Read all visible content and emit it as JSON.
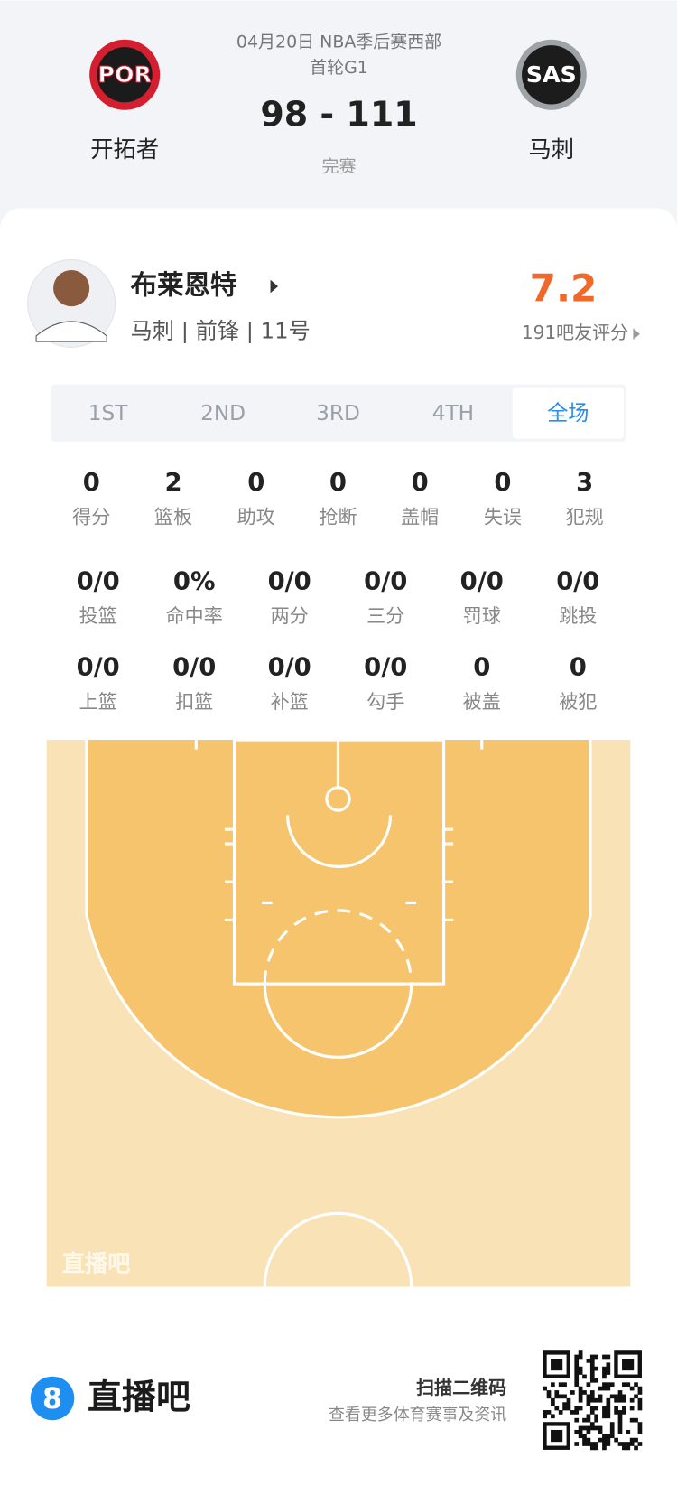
{
  "header": {
    "date": "04月20日 NBA季后赛西部",
    "round": "首轮G1",
    "score": "98 - 111",
    "status": "完赛",
    "home_team": {
      "logo": "POR",
      "name": "开拓者"
    },
    "away_team": {
      "logo": "SAS",
      "name": "马刺"
    }
  },
  "player": {
    "name": "布莱恩特",
    "info": "马刺 | 前锋 | 11号",
    "rating": "7.2",
    "rating_label": "191吧友评分"
  },
  "tabs": {
    "items": [
      "1ST",
      "2ND",
      "3RD",
      "4TH",
      "全场"
    ],
    "active": 4
  },
  "stats": {
    "rows": [
      [
        {
          "value": "0",
          "label": "得分"
        },
        {
          "value": "2",
          "label": "篮板"
        },
        {
          "value": "0",
          "label": "助攻"
        },
        {
          "value": "0",
          "label": "抢断"
        },
        {
          "value": "0",
          "label": "盖帽"
        },
        {
          "value": "0",
          "label": "失误"
        },
        {
          "value": "3",
          "label": "犯规"
        }
      ],
      [
        {
          "value": "0/0",
          "label": "投篮"
        },
        {
          "value": "0%",
          "label": "命中率"
        },
        {
          "value": "0/0",
          "label": "两分"
        },
        {
          "value": "0/0",
          "label": "三分"
        },
        {
          "value": "0/0",
          "label": "罚球"
        },
        {
          "value": "0/0",
          "label": "跳投"
        }
      ],
      [
        {
          "value": "0/0",
          "label": "上篮"
        },
        {
          "value": "0/0",
          "label": "扣篮"
        },
        {
          "value": "0/0",
          "label": "补篮"
        },
        {
          "value": "0/0",
          "label": "勾手"
        },
        {
          "value": "0",
          "label": "被盖"
        },
        {
          "value": "0",
          "label": "被犯"
        }
      ]
    ]
  },
  "watermark": "直播吧",
  "footer": {
    "logo_mark": "8",
    "brand": "直播吧",
    "qr_title": "扫描二维码",
    "qr_subtitle": "查看更多体育赛事及资讯"
  }
}
